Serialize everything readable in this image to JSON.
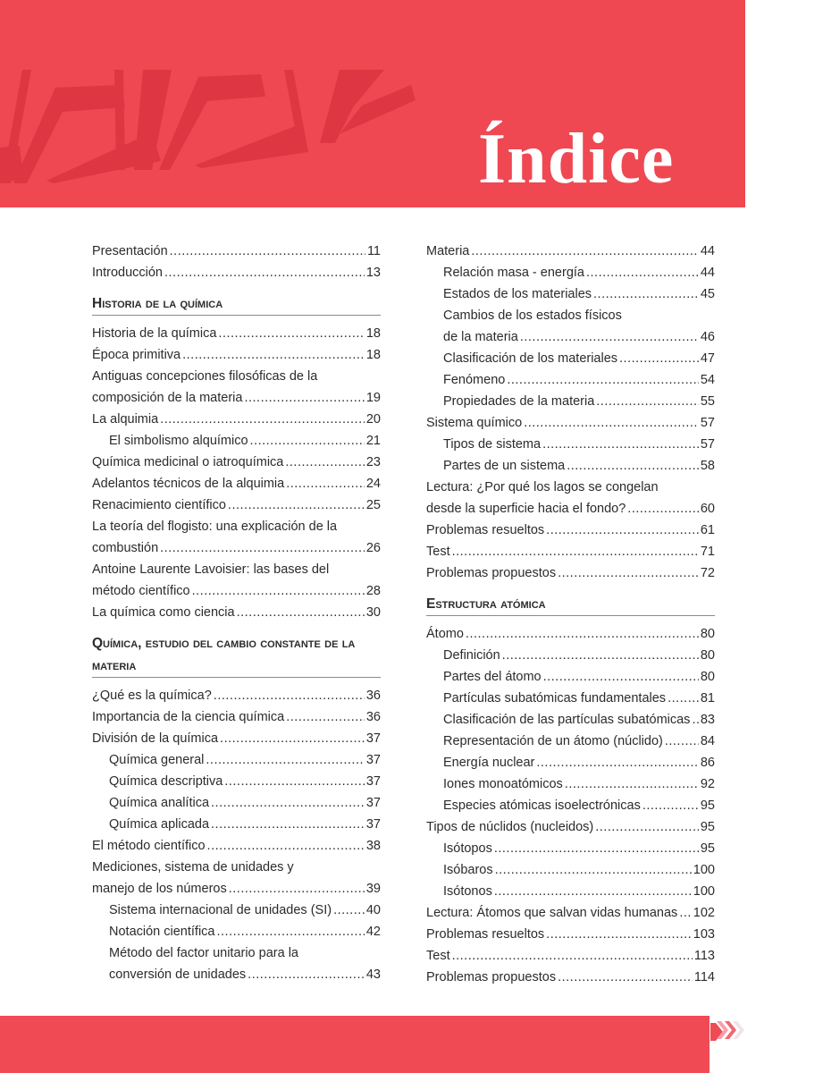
{
  "header": {
    "title": "Índice",
    "color": "#ef4852"
  },
  "footer": {
    "color": "#f04a55",
    "icon": "chevrons-right-icon"
  },
  "columns": [
    [
      {
        "text": "Presentación",
        "page": "11"
      },
      {
        "text": "Introducción",
        "page": "13"
      },
      {
        "heading": "Historia de la química"
      },
      {
        "text": "Historia de la química",
        "page": "18"
      },
      {
        "text": "Época primitiva",
        "page": "18"
      },
      {
        "pre": "Antiguas concepciones filosóficas de la",
        "text": "composición de la materia",
        "page": "19"
      },
      {
        "text": "La alquimia",
        "page": "20"
      },
      {
        "text": "El simbolismo alquímico",
        "page": "21",
        "indent": true
      },
      {
        "text": "Química medicinal o iatroquímica",
        "page": "23"
      },
      {
        "text": "Adelantos técnicos de la alquimia",
        "page": "24"
      },
      {
        "text": "Renacimiento científico",
        "page": "25"
      },
      {
        "pre": "La teoría del flogisto: una explicación de la",
        "text": "combustión",
        "page": "26"
      },
      {
        "pre": "Antoine Laurente Lavoisier: las bases del",
        "text": "método científico",
        "page": "28"
      },
      {
        "text": "La química como ciencia",
        "page": "30"
      },
      {
        "heading": "Química, estudio del cambio constante de la materia"
      },
      {
        "text": "¿Qué es la química?",
        "page": "36"
      },
      {
        "text": "Importancia de la ciencia química",
        "page": "36"
      },
      {
        "text": "División de la química",
        "page": "37"
      },
      {
        "text": "Química general",
        "page": "37",
        "indent": true
      },
      {
        "text": "Química descriptiva",
        "page": "37",
        "indent": true
      },
      {
        "text": "Química analítica",
        "page": "37",
        "indent": true
      },
      {
        "text": "Química aplicada",
        "page": "37",
        "indent": true
      },
      {
        "text": "El método científico",
        "page": "38"
      },
      {
        "pre": "Mediciones, sistema de unidades y",
        "text": "manejo de los números",
        "page": "39"
      },
      {
        "text": "Sistema internacional de unidades (SI)",
        "page": "40",
        "indent": true
      },
      {
        "text": "Notación científica",
        "page": "42",
        "indent": true
      },
      {
        "pre": "Método del factor unitario para la",
        "text": "conversión de unidades",
        "page": "43",
        "indent": true
      }
    ],
    [
      {
        "text": "Materia",
        "page": "44"
      },
      {
        "text": "Relación masa - energía",
        "page": "44",
        "indent": true
      },
      {
        "text": "Estados de los materiales",
        "page": "45",
        "indent": true
      },
      {
        "pre": "Cambios de los estados físicos",
        "text": "de la materia",
        "page": "46",
        "indent": true
      },
      {
        "text": "Clasificación de los materiales",
        "page": "47",
        "indent": true
      },
      {
        "text": "Fenómeno",
        "page": "54",
        "indent": true
      },
      {
        "text": "Propiedades de la materia",
        "page": "55",
        "indent": true
      },
      {
        "text": "Sistema químico",
        "page": "57"
      },
      {
        "text": "Tipos de sistema",
        "page": "57",
        "indent": true
      },
      {
        "text": "Partes de un sistema",
        "page": "58",
        "indent": true
      },
      {
        "pre": "Lectura: ¿Por qué los lagos se congelan",
        "text": "desde la superficie hacia el fondo?",
        "page": "60"
      },
      {
        "text": "Problemas resueltos",
        "page": "61"
      },
      {
        "text": "Test",
        "page": "71"
      },
      {
        "text": "Problemas propuestos",
        "page": "72"
      },
      {
        "heading": "Estructura atómica"
      },
      {
        "text": "Átomo",
        "page": "80"
      },
      {
        "text": "Definición",
        "page": "80",
        "indent": true
      },
      {
        "text": "Partes del átomo",
        "page": "80",
        "indent": true
      },
      {
        "text": "Partículas subatómicas fundamentales",
        "page": "81",
        "indent": true
      },
      {
        "text": "Clasificación de las partículas subatómicas",
        "page": "83",
        "indent": true
      },
      {
        "text": "Representación de un átomo (núclido)",
        "page": "84",
        "indent": true
      },
      {
        "text": "Energía nuclear",
        "page": "86",
        "indent": true
      },
      {
        "text": "Iones monoatómicos",
        "page": "92",
        "indent": true
      },
      {
        "text": "Especies atómicas isoelectrónicas",
        "page": "95",
        "indent": true
      },
      {
        "text": "Tipos de núclidos (nucleidos)",
        "page": "95"
      },
      {
        "text": "Isótopos",
        "page": "95",
        "indent": true
      },
      {
        "text": "Isóbaros",
        "page": "100",
        "indent": true
      },
      {
        "text": "Isótonos",
        "page": "100",
        "indent": true
      },
      {
        "text": "Lectura: Átomos que salvan vidas humanas",
        "page": "102"
      },
      {
        "text": "Problemas resueltos",
        "page": "103"
      },
      {
        "text": "Test",
        "page": "113"
      },
      {
        "text": "Problemas propuestos",
        "page": "114"
      }
    ]
  ]
}
